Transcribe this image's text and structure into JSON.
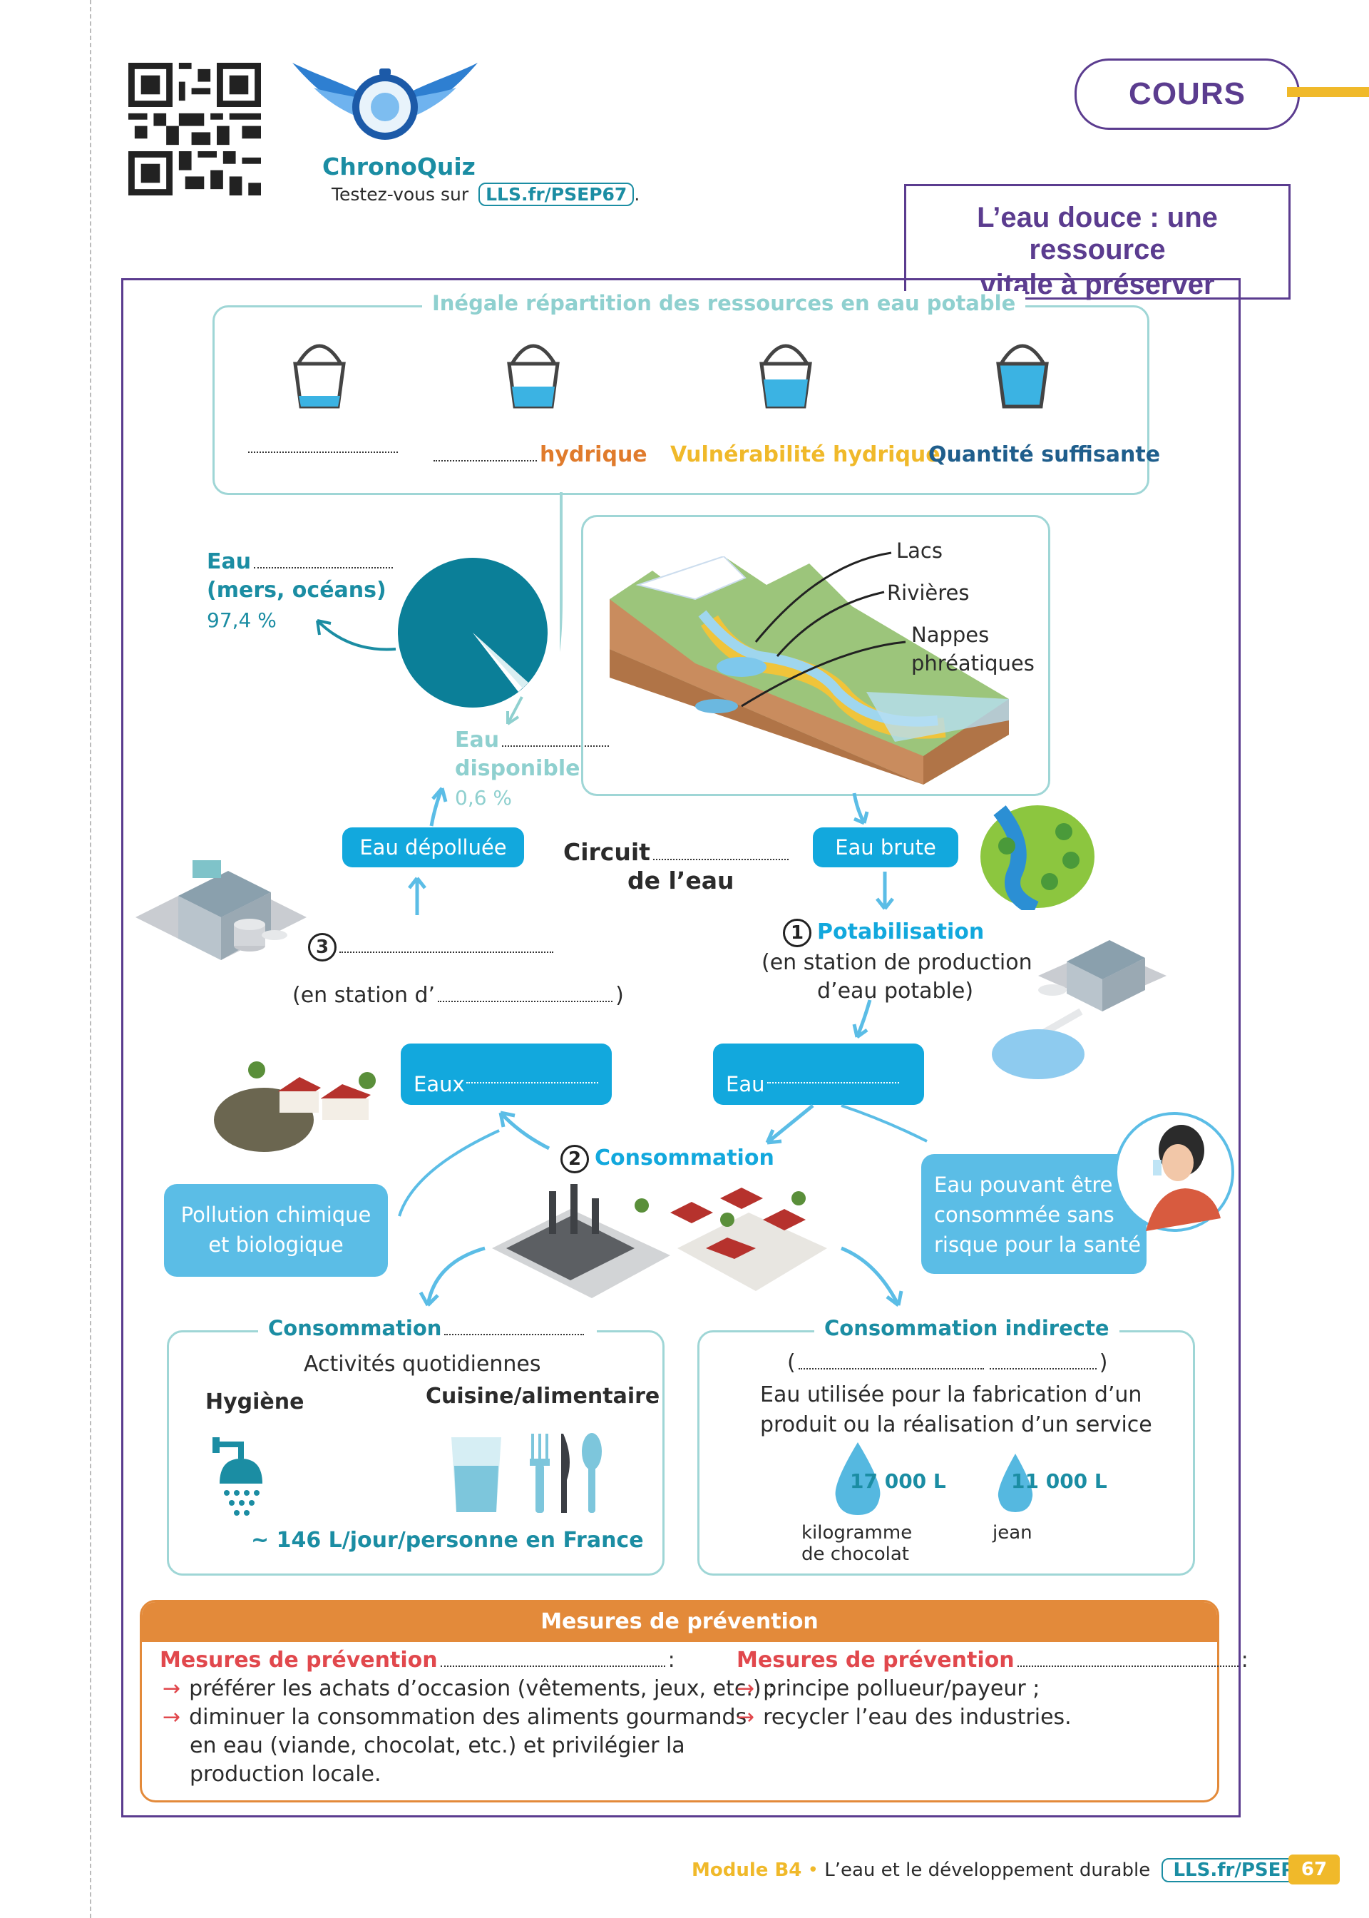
{
  "header": {
    "chronoquiz_label": "ChronoQuiz",
    "test_prefix": "Testez-vous sur",
    "test_link": "LLS.fr/PSEP67",
    "test_suffix": ".",
    "cours_label": "COURS",
    "section_title_line1": "L’eau douce : une ressource",
    "section_title_line2": "vitale à préserver"
  },
  "repartition": {
    "title": "Inégale répartition des ressources en eau potable",
    "items": [
      {
        "label": "",
        "color": "#333333",
        "fill": 0.25
      },
      {
        "label": "hydrique",
        "color": "#e07b2c",
        "fill": 0.5
      },
      {
        "label": "Vulnérabilité hydrique",
        "color": "#f0b92a",
        "fill": 0.65
      },
      {
        "label": "Quantité suffisante",
        "color": "#1f5e8c",
        "fill": 0.95
      }
    ]
  },
  "water_distribution": {
    "salt_label": "Eau",
    "salt_sub": "(mers, océans)",
    "salt_pct": "97,4 %",
    "fresh_label": "Eau",
    "fresh_sub": "disponible",
    "fresh_pct": "0,6 %",
    "salt_value": 97.4,
    "fresh_value": 0.6
  },
  "landscape": {
    "labels": [
      "Lacs",
      "Rivières",
      "Nappes",
      "phréatiques"
    ]
  },
  "cycle": {
    "title_line1": "Circuit",
    "title_line2": "de l’eau",
    "eau_depolluee": "Eau dépolluée",
    "eau_brute": "Eau brute",
    "step1_num": "1",
    "step1_title": "Potabilisation",
    "step1_line1": "(en station de production",
    "step1_line2": "d’eau potable)",
    "step2_num": "2",
    "step2_title": "Consommation",
    "step3_num": "3",
    "step3_sub_prefix": "(en station d’",
    "step3_sub_suffix": ")",
    "eaux_label": "Eaux",
    "eau_label": "Eau",
    "pollution_line1": "Pollution chimique",
    "pollution_line2": "et biologique",
    "potable_line1": "Eau pouvant être",
    "potable_line2": "consommée sans",
    "potable_line3": "risque pour la santé"
  },
  "conso_directe": {
    "title": "Consommation",
    "activities": "Activités quotidiennes",
    "hygiene": "Hygiène",
    "cuisine": "Cuisine/alimentaire",
    "amount": "~ 146 L/jour/personne en France"
  },
  "conso_indirecte": {
    "title": "Consommation indirecte",
    "paren_open": "(",
    "paren_close": ")",
    "line1": "Eau utilisée pour la fabrication d’un",
    "line2": "produit ou la réalisation d’un service",
    "item1_value": "17 000 L",
    "item1_label_line1": "kilogramme",
    "item1_label_line2": "de chocolat",
    "item2_value": "11 000 L",
    "item2_label": "jean"
  },
  "prevention": {
    "header": "Mesures de prévention",
    "left_title": "Mesures de prévention",
    "left_colon": ":",
    "left_items": [
      "préférer les achats d’occasion (vêtements, jeux, etc.) ;",
      "diminuer la consommation des aliments gourmands",
      "en eau (viande, chocolat, etc.) et privilégier la",
      "production locale."
    ],
    "right_title": "Mesures de prévention",
    "right_colon": ":",
    "right_items": [
      "principe pollueur/payeur ;",
      "recycler l’eau des industries."
    ]
  },
  "footer": {
    "module": "Module B4",
    "bullet": "•",
    "theme": "L’eau et le développement durable",
    "link": "LLS.fr/PSEP67",
    "page": "67"
  },
  "colors": {
    "teal": "#1b8da3",
    "purple": "#5b3c8f",
    "orange": "#e38a3a",
    "red": "#e1484d",
    "blue": "#12a8dd",
    "yellow": "#f0b92a"
  }
}
